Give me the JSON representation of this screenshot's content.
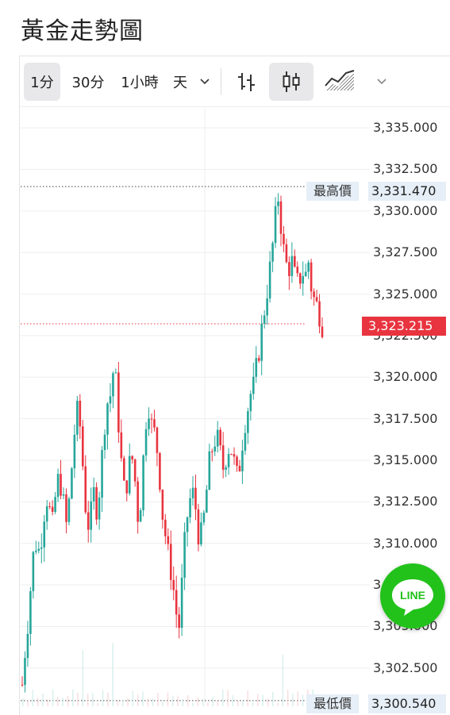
{
  "page": {
    "title": "黃金走勢圖"
  },
  "toolbar": {
    "intervals": [
      "1分",
      "30分",
      "1小時",
      "天"
    ],
    "active_interval": "1分"
  },
  "colors": {
    "up": "#26a69a",
    "down": "#e8343f",
    "grid": "#eeeeee",
    "line_brand": "#22c21b"
  },
  "icons": {
    "bar_style": "ohlc-bars-icon",
    "candle_style": "candlestick-icon",
    "area_style": "area-chart-icon",
    "line_share": "line-app-icon"
  },
  "markers": {
    "high_label": "最高價",
    "high_value": "3,331.470",
    "low_label": "最低價",
    "low_value": "3,300.540",
    "current_value": "3,323.215"
  },
  "line_button": {
    "label": "LINE"
  },
  "chart_data": {
    "type": "candlestick",
    "title": "黃金走勢圖",
    "y_ticks": [
      "3,335.000",
      "3,332.500",
      "3,330.000",
      "3,327.500",
      "3,325.000",
      "3,322.500",
      "3,320.000",
      "3,317.500",
      "3,315.000",
      "3,312.500",
      "3,310.000",
      "3,307.500",
      "3,305.000",
      "3,302.500"
    ],
    "ylim": [
      3300.2,
      3336.2
    ],
    "high": 3331.47,
    "low": 3300.54,
    "current": 3323.215,
    "close_path": [
      3301.5,
      3304,
      3306,
      3309,
      3310,
      3309.5,
      3311,
      3313,
      3312,
      3311,
      3313.5,
      3314,
      3312.5,
      3311,
      3313,
      3316,
      3318,
      3317,
      3314,
      3311,
      3311.5,
      3313,
      3312,
      3314,
      3317,
      3318.5,
      3319,
      3321,
      3318,
      3315,
      3313,
      3314,
      3315.5,
      3314,
      3311.5,
      3313,
      3317,
      3318.5,
      3317,
      3316.5,
      3315,
      3312,
      3310.5,
      3309,
      3308,
      3306,
      3305,
      3308,
      3311,
      3312.5,
      3313,
      3312,
      3310,
      3311,
      3313,
      3315,
      3316,
      3316.5,
      3315.5,
      3314.5,
      3315.5,
      3316,
      3315,
      3314,
      3315,
      3317,
      3318,
      3319,
      3319.5,
      3321,
      3322.5,
      3324,
      3325.5,
      3327,
      3329,
      3331,
      3329,
      3327,
      3326.5,
      3327,
      3326,
      3325.5,
      3326.5,
      3326,
      3327,
      3325,
      3324.5,
      3324,
      3323.2
    ],
    "volume_note": "volume bars shown faintly at bottom"
  }
}
